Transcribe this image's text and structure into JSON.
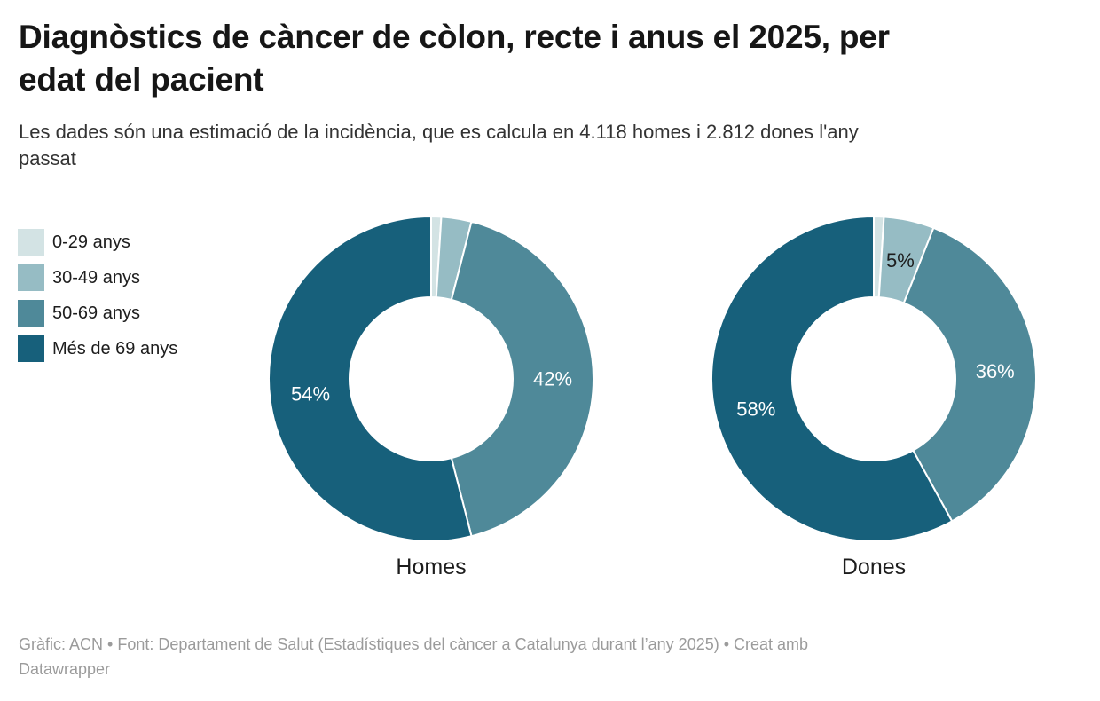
{
  "header": {
    "title_line1": "Diagnòstics de càncer de còlon, recte i anus el 2025, per",
    "title_line2": "edat del pacient",
    "subtitle_line1": "Les dades són una estimació de la incidència, que es calcula en 4.118 homes i 2.812 dones l'any",
    "subtitle_line2": "passat"
  },
  "legend": {
    "items": [
      {
        "label": "0-29 anys",
        "color": "#d3e3e4"
      },
      {
        "label": "30-49 anys",
        "color": "#96bcc4"
      },
      {
        "label": "50-69 anys",
        "color": "#4f8999"
      },
      {
        "label": "Més de 69 anys",
        "color": "#17607b"
      }
    ]
  },
  "chart_data": {
    "type": "pie",
    "variant": "donut",
    "title": "Diagnòstics de càncer de còlon, recte i anus el 2025, per edat del pacient",
    "subtitle": "Les dades són una estimació de la incidència, que es calcula en 4.118 homes i 2.812 dones l'any passat",
    "legend_position": "left",
    "categories": [
      "0-29 anys",
      "30-49 anys",
      "50-69 anys",
      "Més de 69 anys"
    ],
    "colors": [
      "#d3e3e4",
      "#96bcc4",
      "#4f8999",
      "#17607b"
    ],
    "separator_color": "#ffffff",
    "charts": [
      {
        "name": "Homes",
        "total_note": "4.118 homes",
        "values": [
          1,
          3,
          42,
          54
        ],
        "labels": [
          "",
          "",
          "42%",
          "54%"
        ],
        "label_colors": [
          "",
          "",
          "#ffffff",
          "#ffffff"
        ]
      },
      {
        "name": "Dones",
        "total_note": "2.812 dones",
        "values": [
          1,
          5,
          36,
          58
        ],
        "labels": [
          "",
          "5%",
          "36%",
          "58%"
        ],
        "label_colors": [
          "",
          "#1d1d1d",
          "#ffffff",
          "#ffffff"
        ]
      }
    ]
  },
  "footer": {
    "line1": "Gràfic: ACN • Font: Departament de Salut (Estadístiques del càncer a Catalunya durant l’any 2025) • Creat amb",
    "line2": "Datawrapper"
  }
}
